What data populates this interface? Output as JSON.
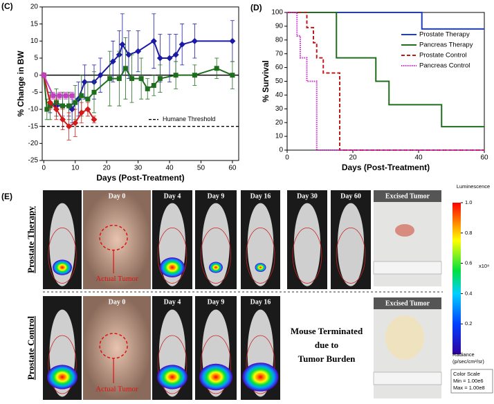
{
  "chart_data": [
    {
      "type": "line",
      "panel": "(C)",
      "ylabel": "% Change in BW",
      "xlabel": "Days (Post-Treatment)",
      "xlim": [
        -0.5,
        62
      ],
      "ylim": [
        -25,
        20
      ],
      "xticks": [
        0,
        10,
        20,
        30,
        40,
        50,
        60
      ],
      "yticks": [
        -25,
        -20,
        -15,
        -10,
        -5,
        0,
        5,
        10,
        15,
        20
      ],
      "zero_line": true,
      "threshold": {
        "value": -15,
        "label": "Humane Threshold"
      },
      "series": [
        {
          "color": "#1a1aa6",
          "marker": "diamond",
          "x": [
            0,
            2,
            4,
            6,
            8,
            9,
            11,
            13,
            16,
            18,
            22,
            24,
            25,
            27,
            30,
            35,
            37,
            40,
            42,
            44,
            48,
            60
          ],
          "values": [
            0,
            -8,
            -9,
            -9,
            -9,
            -10,
            -7,
            -2,
            -2,
            0,
            4,
            6,
            9,
            6,
            7,
            10,
            5,
            5,
            6,
            9,
            10,
            10
          ],
          "errors": [
            0,
            3,
            3,
            3,
            3,
            4,
            5,
            5,
            5,
            5,
            6,
            7,
            9,
            7,
            6,
            8,
            7,
            7,
            6,
            6,
            5,
            6
          ]
        },
        {
          "color": "#1e6e1e",
          "marker": "square",
          "x": [
            0,
            1,
            2,
            4,
            6,
            8,
            10,
            12,
            14,
            16,
            21,
            24,
            26,
            28,
            31,
            33,
            35,
            37,
            42,
            48,
            55,
            60
          ],
          "values": [
            0,
            -10,
            -9,
            -8,
            -9,
            -9,
            -8,
            -6,
            -7,
            -5,
            -1,
            -1,
            2,
            -1,
            -1,
            -4,
            -3,
            -1,
            0,
            0,
            2,
            0
          ],
          "errors": [
            0,
            3,
            4,
            4,
            4,
            4,
            5,
            6,
            5,
            6,
            8,
            8,
            9,
            7,
            6,
            3,
            3,
            4,
            4,
            3,
            3,
            4
          ]
        },
        {
          "color": "#d21a1a",
          "marker": "diamond",
          "x": [
            0,
            2,
            4,
            6,
            8,
            10,
            12,
            14,
            16
          ],
          "values": [
            0,
            -8,
            -10,
            -13,
            -15,
            -14,
            -11,
            -10,
            -13
          ],
          "errors": [
            0,
            2,
            3,
            3,
            4,
            4,
            3,
            2,
            1
          ]
        },
        {
          "color": "#c040c0",
          "marker": "square",
          "x": [
            0,
            3,
            5,
            7,
            9
          ],
          "values": [
            0,
            -6,
            -6,
            -6,
            -6
          ],
          "errors": [
            0,
            1,
            1,
            1,
            1
          ]
        }
      ]
    },
    {
      "type": "step",
      "panel": "(D)",
      "ylabel": "% Survival",
      "xlabel": "Days (Post-Treatment)",
      "xlim": [
        0,
        60
      ],
      "ylim": [
        0,
        100
      ],
      "xticks": [
        0,
        20,
        40,
        60
      ],
      "yticks": [
        0,
        10,
        20,
        30,
        40,
        50,
        60,
        70,
        80,
        90,
        100
      ],
      "legend": "upper right",
      "series": [
        {
          "name": "Prostate Therapy",
          "color": "#1a3ae0",
          "dash": "solid",
          "x": [
            0,
            41,
            60
          ],
          "values": [
            100,
            88,
            88
          ]
        },
        {
          "name": "Pancreas Therapy",
          "color": "#1e6e1e",
          "dash": "solid",
          "x": [
            0,
            15,
            27,
            31,
            47,
            60
          ],
          "values": [
            100,
            67,
            50,
            33,
            17,
            17
          ]
        },
        {
          "name": "Prostate Control",
          "color": "#c01818",
          "dash": "dashed",
          "x": [
            0,
            6,
            8,
            9,
            11,
            16,
            60
          ],
          "values": [
            100,
            89,
            78,
            67,
            56,
            0,
            0
          ]
        },
        {
          "name": "Pancreas Control",
          "color": "#d020d0",
          "dash": "dotted",
          "x": [
            0,
            3,
            4,
            6,
            9,
            60
          ],
          "values": [
            100,
            83,
            67,
            50,
            0,
            0
          ]
        }
      ]
    }
  ],
  "panel_e": {
    "label": "(E)",
    "rows": [
      {
        "label": "Prostate Therapy",
        "days": [
          "Day 0",
          "Day 4",
          "Day 9",
          "Day 16",
          "Day 30",
          "Day 60"
        ],
        "tumor_note": "Actual Tumor",
        "excised": "Excised Tumor"
      },
      {
        "label": "Prostate Control",
        "days": [
          "Day 0",
          "Day 4",
          "Day 9",
          "Day 16"
        ],
        "tumor_note": "Actual Tumor",
        "excised": "Excised Tumor",
        "note": [
          "Mouse Terminated",
          "due to",
          "Tumor Burden"
        ]
      }
    ],
    "colorbar": {
      "title": "Luminescence",
      "lim": [
        0,
        1
      ],
      "ticks": [
        {
          "value": 1,
          "label": "1.0"
        },
        0.8,
        0.6,
        0.4,
        0.2
      ],
      "multiplier": "x10⁸",
      "unit": [
        "Radiance",
        "(p/sec/cm²/sr)"
      ],
      "scale": [
        "Color Scale",
        "Min = 1.00e6",
        "Max = 1.00e8"
      ]
    }
  }
}
